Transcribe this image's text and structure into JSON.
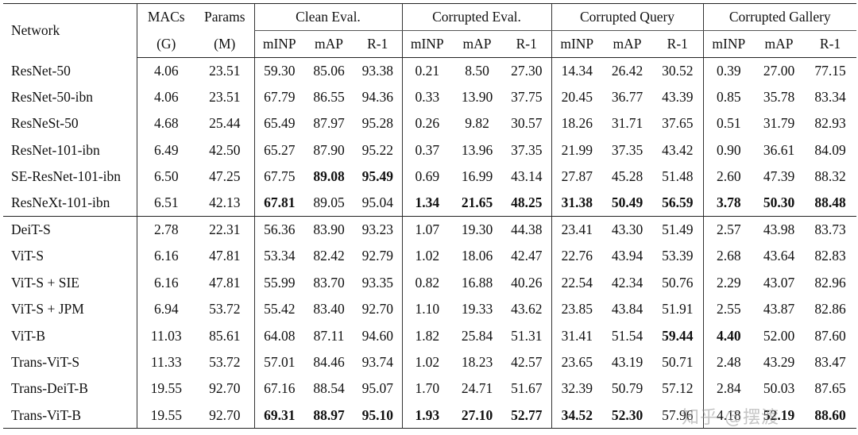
{
  "table": {
    "header": {
      "top": [
        "Network",
        "MACs",
        "Params"
      ],
      "groups": [
        "Clean Eval.",
        "Corrupted Eval.",
        "Corrupted Query",
        "Corrupted Gallery"
      ],
      "units": [
        "(G)",
        "(M)"
      ],
      "metrics": [
        "mINP",
        "mAP",
        "R-1"
      ]
    },
    "sections": [
      {
        "rows": [
          [
            "ResNet-50",
            "4.06",
            "23.51",
            "59.30",
            "85.06",
            "93.38",
            "0.21",
            "8.50",
            "27.30",
            "14.34",
            "26.42",
            "30.52",
            "0.39",
            "27.00",
            "77.15"
          ],
          [
            "ResNet-50-ibn",
            "4.06",
            "23.51",
            "67.79",
            "86.55",
            "94.36",
            "0.33",
            "13.90",
            "37.75",
            "20.45",
            "36.77",
            "43.39",
            "0.85",
            "35.78",
            "83.34"
          ],
          [
            "ResNeSt-50",
            "4.68",
            "25.44",
            "65.49",
            "87.97",
            "95.28",
            "0.26",
            "9.82",
            "30.57",
            "18.26",
            "31.71",
            "37.65",
            "0.51",
            "31.79",
            "82.93"
          ],
          [
            "ResNet-101-ibn",
            "6.49",
            "42.50",
            "65.27",
            "87.90",
            "95.22",
            "0.37",
            "13.96",
            "37.35",
            "21.99",
            "37.35",
            "43.42",
            "0.90",
            "36.61",
            "84.09"
          ],
          [
            "SE-ResNet-101-ibn",
            "6.50",
            "47.25",
            "67.75",
            {
              "text": "89.08",
              "bold": true
            },
            {
              "text": "95.49",
              "bold": true
            },
            "0.69",
            "16.99",
            "43.14",
            "27.87",
            "45.28",
            "51.48",
            "2.60",
            "47.39",
            "88.32"
          ],
          [
            "ResNeXt-101-ibn",
            "6.51",
            "42.13",
            {
              "text": "67.81",
              "bold": true
            },
            "89.05",
            "95.04",
            {
              "text": "1.34",
              "bold": true
            },
            {
              "text": "21.65",
              "bold": true
            },
            {
              "text": "48.25",
              "bold": true
            },
            {
              "text": "31.38",
              "bold": true
            },
            {
              "text": "50.49",
              "bold": true
            },
            {
              "text": "56.59",
              "bold": true
            },
            {
              "text": "3.78",
              "bold": true
            },
            {
              "text": "50.30",
              "bold": true
            },
            {
              "text": "88.48",
              "bold": true
            }
          ]
        ]
      },
      {
        "rows": [
          [
            "DeiT-S",
            "2.78",
            "22.31",
            "56.36",
            "83.90",
            "93.23",
            "1.07",
            "19.30",
            "44.38",
            "23.41",
            "43.30",
            "51.49",
            "2.57",
            "43.98",
            "83.73"
          ],
          [
            "ViT-S",
            "6.16",
            "47.81",
            "53.34",
            "82.42",
            "92.79",
            "1.02",
            "18.06",
            "42.47",
            "22.76",
            "43.94",
            "53.39",
            "2.68",
            "43.64",
            "82.83"
          ],
          [
            "ViT-S + SIE",
            "6.16",
            "47.81",
            "55.99",
            "83.70",
            "93.35",
            "0.82",
            "16.88",
            "40.26",
            "22.54",
            "42.34",
            "50.76",
            "2.29",
            "43.07",
            "82.96"
          ],
          [
            "ViT-S + JPM",
            "6.94",
            "53.72",
            "55.42",
            "83.40",
            "92.70",
            "1.10",
            "19.33",
            "43.62",
            "23.85",
            "43.84",
            "51.91",
            "2.55",
            "43.87",
            "82.86"
          ],
          [
            "ViT-B",
            "11.03",
            "85.61",
            "64.08",
            "87.11",
            "94.60",
            "1.82",
            "25.84",
            "51.31",
            "31.41",
            "51.54",
            {
              "text": "59.44",
              "bold": true
            },
            {
              "text": "4.40",
              "bold": true
            },
            "52.00",
            "87.60"
          ],
          [
            "Trans-ViT-S",
            "11.33",
            "53.72",
            "57.01",
            "84.46",
            "93.74",
            "1.02",
            "18.23",
            "42.57",
            "23.65",
            "43.19",
            "50.71",
            "2.48",
            "43.29",
            "83.47"
          ],
          [
            "Trans-DeiT-B",
            "19.55",
            "92.70",
            "67.16",
            "88.54",
            "95.07",
            "1.70",
            "24.71",
            "51.67",
            "32.39",
            "50.79",
            "57.12",
            "2.84",
            "50.03",
            "87.65"
          ],
          [
            "Trans-ViT-B",
            "19.55",
            "92.70",
            {
              "text": "69.31",
              "bold": true
            },
            {
              "text": "88.97",
              "bold": true
            },
            {
              "text": "95.10",
              "bold": true
            },
            {
              "text": "1.93",
              "bold": true
            },
            {
              "text": "27.10",
              "bold": true
            },
            {
              "text": "52.77",
              "bold": true
            },
            {
              "text": "34.52",
              "bold": true
            },
            {
              "text": "52.30",
              "bold": true
            },
            "57.96",
            "4.18",
            {
              "text": "52.19",
              "bold": true
            },
            {
              "text": "88.60",
              "bold": true
            }
          ]
        ]
      }
    ]
  },
  "watermark": "知乎 @摆渡"
}
